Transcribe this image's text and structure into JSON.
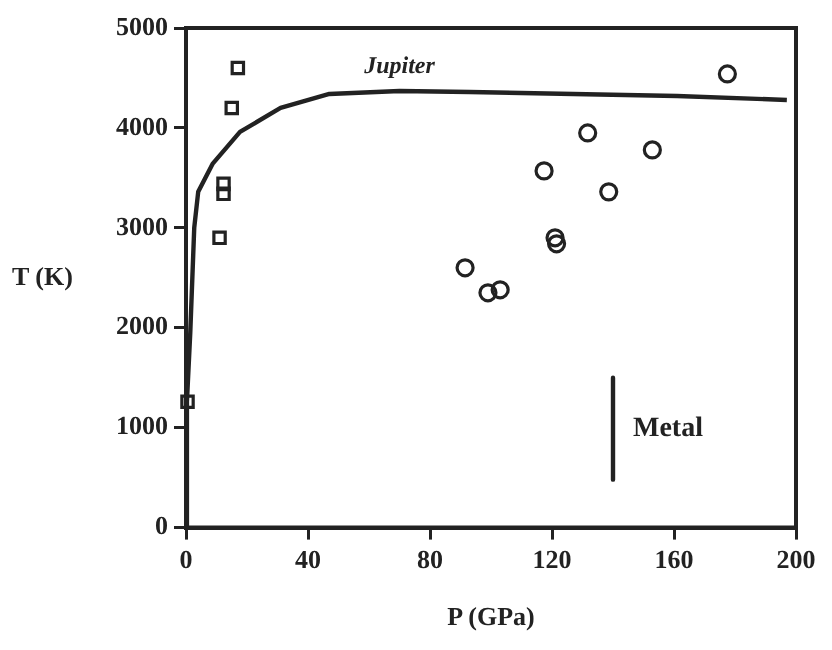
{
  "chart_data": {
    "type": "scatter",
    "xlabel": "P (GPa)",
    "ylabel": "T (K)",
    "xlim": [
      0,
      200
    ],
    "ylim": [
      0,
      5000
    ],
    "xticks": [
      0,
      40,
      80,
      120,
      160,
      200
    ],
    "yticks": [
      0,
      1000,
      2000,
      3000,
      4000,
      5000
    ],
    "grid": false,
    "legend": false,
    "series": [
      {
        "name": "Jupiter",
        "type": "line",
        "color": "#222222",
        "marker": "none",
        "x": [
          0,
          0.3,
          1.4,
          2.7,
          4,
          8.7,
          17.7,
          31,
          47,
          70,
          93,
          127,
          161,
          197
        ],
        "values": [
          0,
          1260,
          1950,
          3000,
          3360,
          3640,
          3960,
          4200,
          4340,
          4370,
          4360,
          4340,
          4320,
          4280
        ]
      },
      {
        "name": "Metal",
        "type": "line",
        "color": "#222222",
        "marker": "none",
        "x": [
          140,
          140
        ],
        "values": [
          1500,
          480
        ]
      },
      {
        "type": "scatter",
        "color": "#222222",
        "marker": "square",
        "x": [
          17,
          15,
          12.3,
          12.3,
          11,
          0.5
        ],
        "values": [
          4600,
          4200,
          3440,
          3340,
          2900,
          1260
        ]
      },
      {
        "type": "scatter",
        "color": "#222222",
        "marker": "circle",
        "x": [
          177.5,
          131.7,
          152.9,
          117.4,
          138.6,
          121,
          121.5,
          91.5,
          99,
          103
        ],
        "values": [
          4540,
          3950,
          3780,
          3570,
          3360,
          2900,
          2840,
          2600,
          2350,
          2380
        ]
      }
    ]
  }
}
